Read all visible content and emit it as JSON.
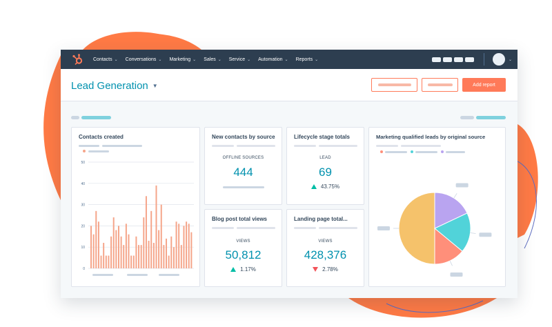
{
  "nav": {
    "menu": [
      {
        "label": "Contacts"
      },
      {
        "label": "Conversations"
      },
      {
        "label": "Marketing"
      },
      {
        "label": "Sales"
      },
      {
        "label": "Service"
      },
      {
        "label": "Automation"
      },
      {
        "label": "Reports"
      }
    ],
    "logo_icon": "sprocket-logo-icon",
    "colors": {
      "bar": "#2d3e50",
      "logo": "#ff7a59"
    }
  },
  "header": {
    "title": "Lead Generation",
    "primary_button": "Add report",
    "accent": "#ff7a59",
    "title_color": "#0091ae"
  },
  "cards": {
    "contacts_created": {
      "title": "Contacts created",
      "chart_data": {
        "type": "bar",
        "title": "Contacts created",
        "y_ticks": [
          "0",
          "10",
          "20",
          "30",
          "40",
          "50"
        ],
        "ylim": [
          0,
          50
        ],
        "grid": true,
        "bar_color": "#f5a58a",
        "values": [
          20,
          16,
          27,
          22,
          6,
          12,
          6,
          6,
          15,
          24,
          18,
          20,
          15,
          11,
          21,
          16,
          6,
          6,
          15,
          11,
          11,
          24,
          34,
          13,
          27,
          12,
          39,
          18,
          30,
          11,
          14,
          6,
          15,
          10,
          22,
          21,
          11,
          20,
          22,
          21,
          17
        ]
      }
    },
    "new_contacts": {
      "title": "New contacts by source",
      "label": "OFFLINE SOURCES",
      "value": "444"
    },
    "lifecycle": {
      "title": "Lifecycle stage totals",
      "label": "LEAD",
      "value": "69",
      "change": "43.75%",
      "direction": "up"
    },
    "blog_views": {
      "title": "Blog post total views",
      "label": "VIEWS",
      "value": "50,812",
      "change": "1.17%",
      "direction": "up"
    },
    "landing_views": {
      "title": "Landing page total...",
      "label": "VIEWS",
      "value": "428,376",
      "change": "2.78%",
      "direction": "down"
    },
    "mql": {
      "title": "Marketing qualified leads by original source",
      "chart_data": {
        "type": "pie",
        "title": "Marketing qualified leads by original source",
        "slices": [
          {
            "value": 50,
            "color": "#f5c26b"
          },
          {
            "value": 14,
            "color": "#ff8f7a"
          },
          {
            "value": 18,
            "color": "#51d3d9"
          },
          {
            "value": 18,
            "color": "#b9a4f0"
          }
        ],
        "legend_colors": [
          "#ff8f7a",
          "#51d3d9",
          "#b9a4f0"
        ]
      }
    }
  },
  "status": {
    "up_color": "#00bda5",
    "down_color": "#f2545b"
  }
}
